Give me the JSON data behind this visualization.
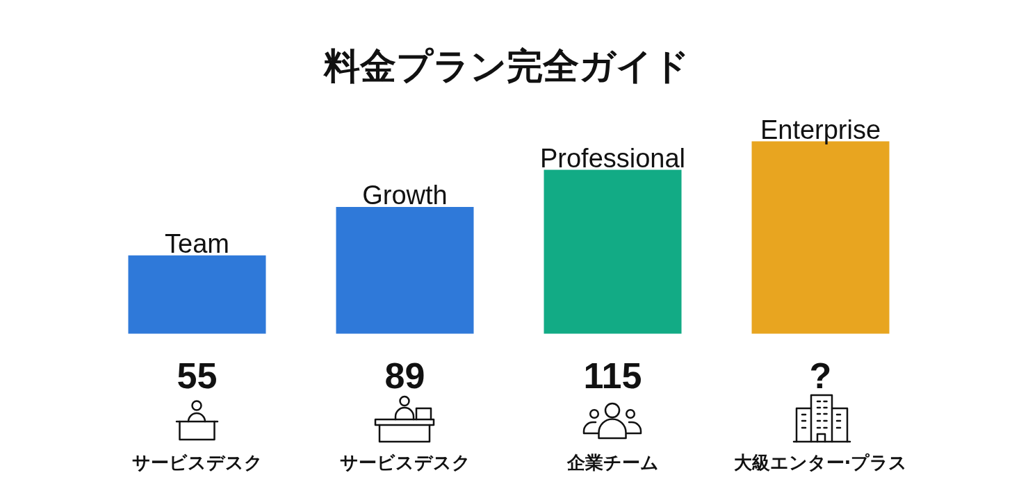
{
  "chart_data": {
    "type": "bar",
    "title": "料金プラン完全ガイド",
    "categories": [
      "Team",
      "Growth",
      "Professional",
      "Enterprise"
    ],
    "values": [
      55,
      89,
      115,
      135
    ],
    "value_labels": [
      "55",
      "89",
      "115",
      "?"
    ],
    "colors": [
      "#2f79d9",
      "#2f79d9",
      "#12ab85",
      "#e8a520"
    ],
    "annotations": [
      "サービスデスク",
      "サービスデスク",
      "企業チーム",
      "大級エンター·プラス"
    ],
    "tick_labels": "x"
  }
}
